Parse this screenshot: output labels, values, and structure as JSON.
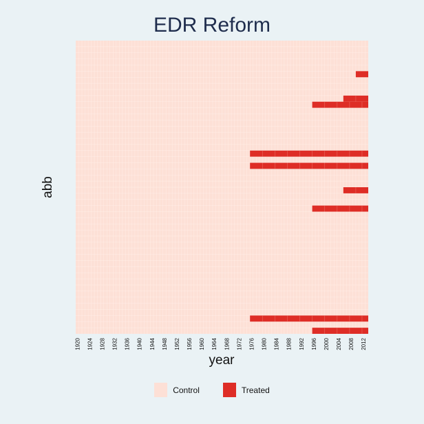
{
  "chart_data": {
    "type": "heatmap",
    "title": "EDR Reform",
    "xlabel": "year",
    "ylabel": "abb",
    "x_ticks": [
      "1920",
      "1924",
      "1928",
      "1932",
      "1936",
      "1940",
      "1944",
      "1948",
      "1952",
      "1956",
      "1960",
      "1964",
      "1968",
      "1972",
      "1976",
      "1980",
      "1984",
      "1988",
      "1992",
      "1996",
      "2000",
      "2004",
      "2008",
      "2012"
    ],
    "x_range": [
      1920,
      2014
    ],
    "n_rows": 48,
    "colors": {
      "control": "#fde0d6",
      "treated": "#de2d26",
      "grid": "#fff3ee"
    },
    "legend": [
      {
        "label": "Control",
        "color": "#fde0d6"
      },
      {
        "label": "Treated",
        "color": "#de2d26"
      }
    ],
    "legend_position": "bottom",
    "treated_rows": [
      {
        "row": 5,
        "start_year": 2010
      },
      {
        "row": 9,
        "start_year": 2006
      },
      {
        "row": 10,
        "start_year": 1996
      },
      {
        "row": 18,
        "start_year": 1976
      },
      {
        "row": 20,
        "start_year": 1976
      },
      {
        "row": 24,
        "start_year": 2006
      },
      {
        "row": 27,
        "start_year": 1996
      },
      {
        "row": 45,
        "start_year": 1976
      },
      {
        "row": 47,
        "start_year": 1996
      }
    ]
  }
}
